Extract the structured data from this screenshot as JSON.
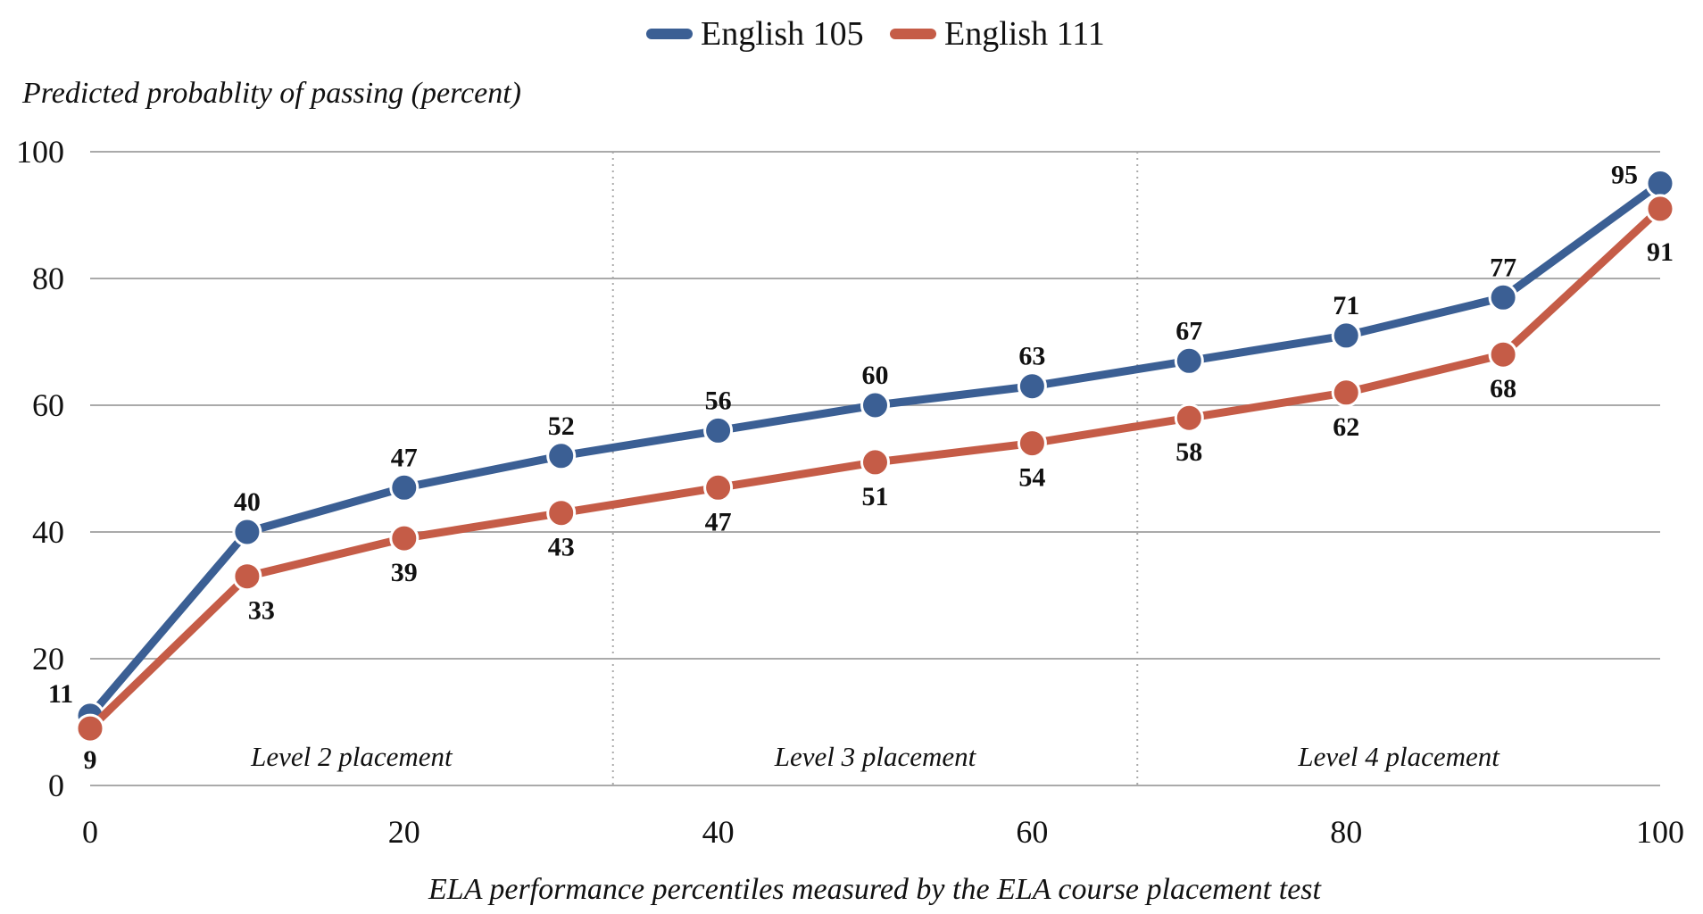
{
  "chart_data": {
    "type": "line",
    "title": "",
    "ylabel": "Predicted probablity of passing (percent)",
    "xlabel": "ELA performance percentiles measured by the ELA course placement test",
    "x": [
      0,
      10,
      20,
      30,
      40,
      50,
      60,
      70,
      80,
      90,
      100
    ],
    "xlim": [
      0,
      100
    ],
    "ylim": [
      0,
      100
    ],
    "xticks": [
      0,
      20,
      40,
      60,
      80,
      100
    ],
    "yticks": [
      0,
      20,
      40,
      60,
      80,
      100
    ],
    "grid": "horizontal",
    "legend_position": "top-center",
    "series": [
      {
        "name": "English 105",
        "color": "#3b5f94",
        "values": [
          11,
          40,
          47,
          52,
          56,
          60,
          63,
          67,
          71,
          77,
          95
        ],
        "label_position": "above"
      },
      {
        "name": "English 111",
        "color": "#c55c47",
        "values": [
          9,
          33,
          39,
          43,
          47,
          51,
          54,
          58,
          62,
          68,
          91
        ],
        "label_position": "below"
      }
    ],
    "regions": [
      {
        "label": "Level 2 placement",
        "from": 0,
        "to": 33.3
      },
      {
        "label": "Level 3 placement",
        "from": 33.3,
        "to": 66.7
      },
      {
        "label": "Level 4 placement",
        "from": 66.7,
        "to": 100
      }
    ]
  }
}
